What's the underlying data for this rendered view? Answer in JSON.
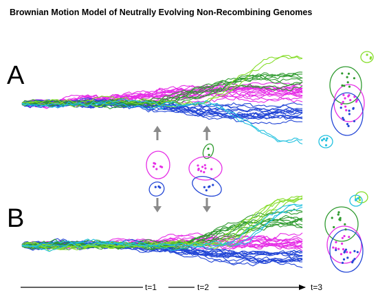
{
  "title": "Brownian Motion Model of Neutrally Evolving Non-Recombining Genomes",
  "panels": [
    {
      "label": "A",
      "lineages": [
        {
          "color": "magenta",
          "count": 16
        },
        {
          "color": "blue",
          "count": 14
        },
        {
          "color": "green",
          "count": 8
        },
        {
          "color": "light-green",
          "count": 2
        },
        {
          "color": "cyan",
          "count": 2
        }
      ]
    },
    {
      "label": "B",
      "lineages": [
        {
          "color": "magenta",
          "count": 14
        },
        {
          "color": "blue",
          "count": 14
        },
        {
          "color": "green",
          "count": 10
        },
        {
          "color": "light-green",
          "count": 5
        },
        {
          "color": "cyan",
          "count": 3
        }
      ]
    }
  ],
  "timeline": {
    "labels": [
      "t=1",
      "t=2",
      "t=3"
    ]
  },
  "colors": {
    "magenta": "#e62ee6",
    "blue": "#2346d6",
    "green": "#2e9a2e",
    "light_green": "#86dd2a",
    "cyan": "#1fc0df",
    "arrow_gray": "#8a8a8a",
    "axis": "#000000"
  },
  "icons": {
    "arrow_up": "up-arrow-icon",
    "arrow_down": "down-arrow-icon",
    "timeline_arrow": "right-arrow-icon"
  }
}
